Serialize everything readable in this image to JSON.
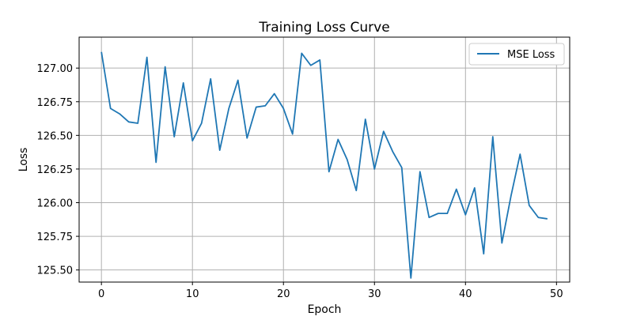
{
  "chart_data": {
    "type": "line",
    "title": "Training Loss Curve",
    "xlabel": "Epoch",
    "ylabel": "Loss",
    "xlim": [
      -2.45,
      51.45
    ],
    "ylim": [
      125.41,
      127.23
    ],
    "xticks": [
      0,
      10,
      20,
      30,
      40,
      50
    ],
    "yticks": [
      125.5,
      125.75,
      126.0,
      126.25,
      126.5,
      126.75,
      127.0
    ],
    "grid": true,
    "legend_position": "top-right",
    "series": [
      {
        "name": "MSE Loss",
        "color": "#1f77b4",
        "x": [
          0,
          1,
          2,
          3,
          4,
          5,
          6,
          7,
          8,
          9,
          10,
          11,
          12,
          13,
          14,
          15,
          16,
          17,
          18,
          19,
          20,
          21,
          22,
          23,
          24,
          25,
          26,
          27,
          28,
          29,
          30,
          31,
          32,
          33,
          34,
          35,
          36,
          37,
          38,
          39,
          40,
          41,
          42,
          43,
          44,
          45,
          46,
          47,
          48,
          49
        ],
        "y": [
          127.12,
          126.7,
          126.66,
          126.6,
          126.59,
          127.08,
          126.3,
          127.01,
          126.49,
          126.89,
          126.46,
          126.59,
          126.92,
          126.39,
          126.7,
          126.91,
          126.48,
          126.71,
          126.72,
          126.81,
          126.7,
          126.51,
          127.11,
          127.02,
          127.06,
          126.23,
          126.47,
          126.32,
          126.09,
          126.62,
          126.25,
          126.53,
          126.38,
          126.26,
          125.44,
          126.23,
          125.89,
          125.92,
          125.92,
          126.1,
          125.91,
          126.11,
          125.62,
          126.49,
          125.7,
          126.05,
          126.36,
          125.98,
          125.89,
          125.88
        ]
      }
    ]
  }
}
